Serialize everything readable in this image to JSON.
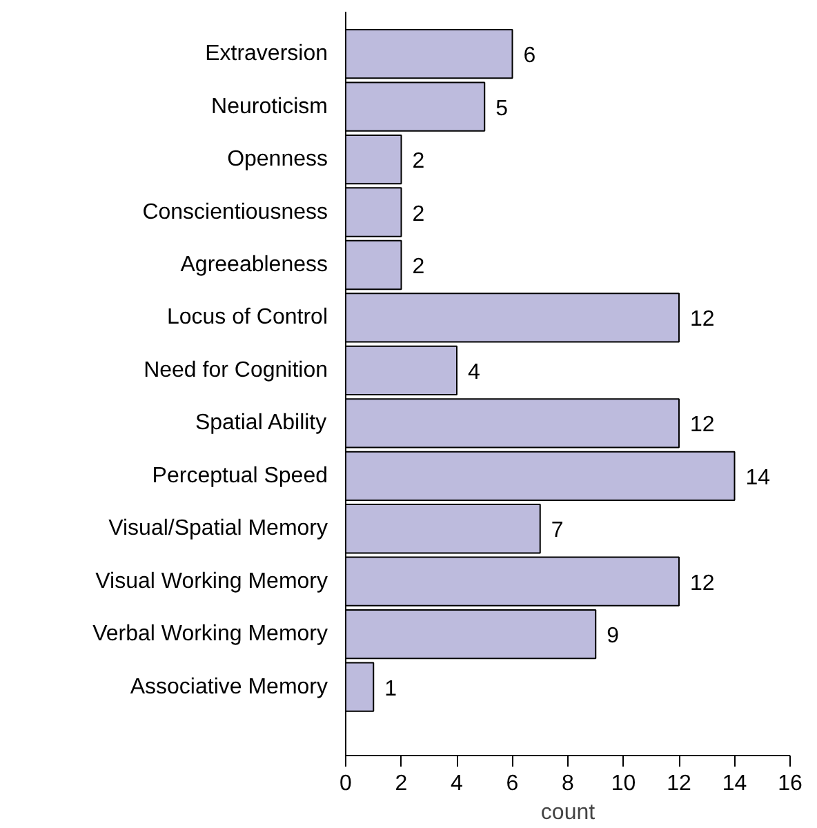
{
  "chart_data": {
    "type": "bar",
    "orientation": "horizontal",
    "xlabel": "count",
    "categories": [
      "Extraversion",
      "Neuroticism",
      "Openness",
      "Conscientiousness",
      "Agreeableness",
      "Locus of Control",
      "Need for Cognition",
      "Spatial Ability",
      "Perceptual Speed",
      "Visual/Spatial Memory",
      "Visual Working Memory",
      "Verbal Working Memory",
      "Associative Memory"
    ],
    "values": [
      6,
      5,
      2,
      2,
      2,
      12,
      4,
      12,
      14,
      7,
      12,
      9,
      1
    ],
    "color": "#bdbbdd",
    "xlim": [
      0,
      16
    ],
    "xticks": [
      0,
      2,
      4,
      6,
      8,
      10,
      12,
      14,
      16
    ],
    "data_labels": true,
    "grid": false
  }
}
